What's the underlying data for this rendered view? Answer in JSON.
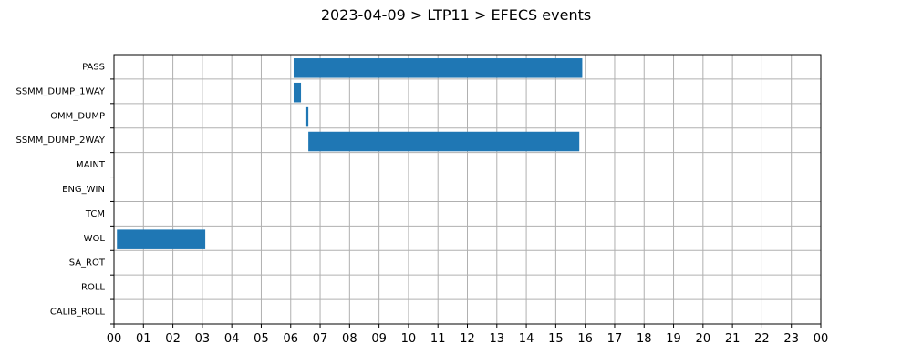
{
  "chart_data": {
    "type": "bar",
    "orientation": "horizontal-timeline",
    "title": "2023-04-09 > LTP11 > EFECS events",
    "xlabel": "",
    "ylabel": "",
    "xlim": [
      0,
      24
    ],
    "x_tick_labels": [
      "00",
      "01",
      "02",
      "03",
      "04",
      "05",
      "06",
      "07",
      "08",
      "09",
      "10",
      "11",
      "12",
      "13",
      "14",
      "15",
      "16",
      "17",
      "18",
      "19",
      "20",
      "21",
      "22",
      "23",
      "00"
    ],
    "categories": [
      "PASS",
      "SSMM_DUMP_1WAY",
      "OMM_DUMP",
      "SSMM_DUMP_2WAY",
      "MAINT",
      "ENG_WIN",
      "TCM",
      "WOL",
      "SA_ROT",
      "ROLL",
      "CALIB_ROLL"
    ],
    "events": [
      {
        "category": "PASS",
        "start": 6.1,
        "end": 15.9
      },
      {
        "category": "SSMM_DUMP_1WAY",
        "start": 6.1,
        "end": 6.35
      },
      {
        "category": "OMM_DUMP",
        "start": 6.5,
        "end": 6.6
      },
      {
        "category": "SSMM_DUMP_2WAY",
        "start": 6.6,
        "end": 15.8
      },
      {
        "category": "WOL",
        "start": 0.1,
        "end": 3.1
      }
    ],
    "grid": true,
    "bar_color": "#1f77b4",
    "grid_color": "#b0b0b0"
  }
}
